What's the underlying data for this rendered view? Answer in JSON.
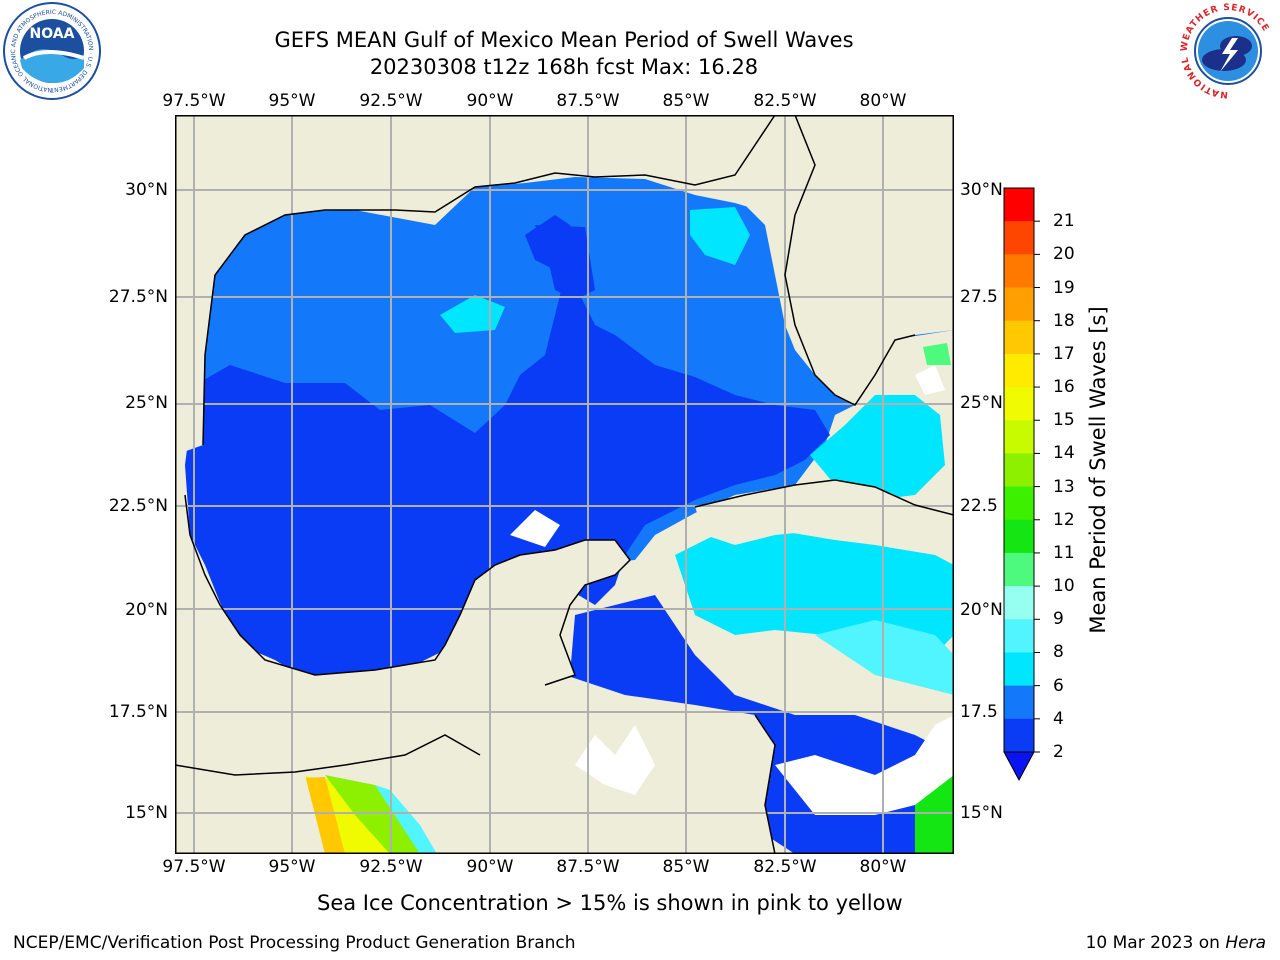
{
  "header": {
    "title_line1": "GEFS MEAN Gulf of Mexico Mean Period of Swell Waves",
    "title_line2": "20230308 t12z 168h fcst   Max: 16.28"
  },
  "logos": {
    "left": {
      "icon": "noaa-logo",
      "text": "NOAA",
      "ring_text": "NATIONAL OCEANIC AND ATMOSPHERIC ADMINISTRATION · U.S. DEPARTMENT OF COMMERCE"
    },
    "right": {
      "icon": "nws-logo",
      "ring_text": "NATIONAL WEATHER SERVICE"
    }
  },
  "map": {
    "lon_labels": [
      "97.5°W",
      "95°W",
      "92.5°W",
      "90°W",
      "87.5°W",
      "85°W",
      "82.5°W",
      "80°W"
    ],
    "lat_labels_left": [
      "30°N",
      "27.5°N",
      "25°N",
      "22.5°N",
      "20°N",
      "17.5°N",
      "15°N"
    ],
    "lat_labels_right": [
      "30°N",
      "27.5",
      "25°N",
      "22.5",
      "20°N",
      "17.5",
      "15°N"
    ],
    "colors": {
      "land": "#eeedda",
      "grid": "#b0b0b0",
      "coast": "#000000"
    }
  },
  "colorbar": {
    "label": "Mean Period of Swell Waves [s]",
    "ticks": [
      "2",
      "4",
      "6",
      "8",
      "9",
      "10",
      "11",
      "12",
      "13",
      "14",
      "15",
      "16",
      "17",
      "18",
      "19",
      "20",
      "21"
    ],
    "colors": [
      "#0a3cf5",
      "#1478fa",
      "#00e6ff",
      "#50f5ff",
      "#96fff0",
      "#4dfa7d",
      "#14e614",
      "#3cf000",
      "#8cf000",
      "#c8fa00",
      "#f0fa00",
      "#ffeb00",
      "#ffc800",
      "#ffa000",
      "#ff7800",
      "#ff4600",
      "#ff0000"
    ],
    "extend_color": "#0a14f0"
  },
  "note": "Sea Ice Concentration > 15% is shown in pink to yellow",
  "footer": {
    "left": "NCEP/EMC/Verification Post Processing Product Generation Branch",
    "right_prefix": "10 Mar 2023 on ",
    "right_host": "Hera"
  }
}
